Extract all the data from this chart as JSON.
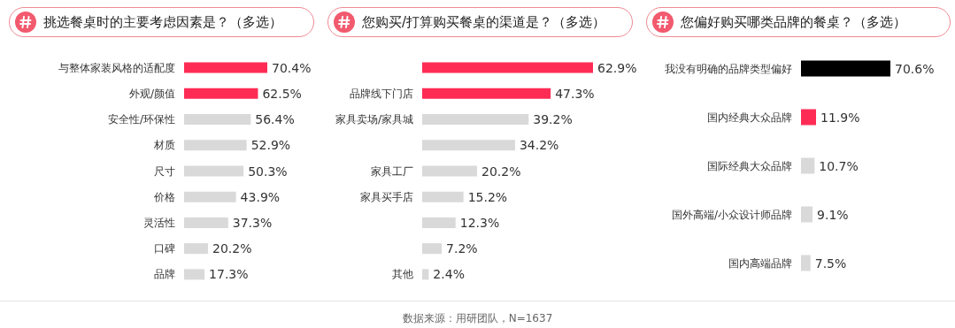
{
  "chart_data": [
    {
      "type": "bar",
      "orientation": "horizontal",
      "title": "挑选餐桌时的主要考虑因素是？（多选）",
      "categories": [
        "与整体家装风格的适配度",
        "外观/颜值",
        "安全性/环保性",
        "材质",
        "尺寸",
        "价格",
        "灵活性",
        "口碑",
        "品牌"
      ],
      "values": [
        70.4,
        62.5,
        56.4,
        52.9,
        50.3,
        43.9,
        37.3,
        20.2,
        17.3
      ],
      "value_labels": [
        "70.4%",
        "62.5%",
        "56.4%",
        "52.9%",
        "50.3%",
        "43.9%",
        "37.3%",
        "20.2%",
        "17.3%"
      ],
      "colors": [
        "#fe2c55",
        "#fe2c55",
        "#d9d9d9",
        "#d9d9d9",
        "#d9d9d9",
        "#d9d9d9",
        "#d9d9d9",
        "#d9d9d9",
        "#d9d9d9"
      ],
      "annotations": [
        "数据来源：用研团队，N=1637"
      ]
    },
    {
      "type": "bar",
      "orientation": "horizontal",
      "title": "您购买/打算购买餐桌的渠道是？（多选）",
      "categories": [
        null,
        "品牌线下门店",
        "家具卖场/家具城",
        null,
        "家具工厂",
        "家具买手店",
        null,
        null,
        "其他"
      ],
      "values": [
        62.9,
        47.3,
        39.2,
        34.2,
        20.2,
        15.2,
        12.3,
        7.2,
        2.4
      ],
      "value_labels": [
        "62.9%",
        "47.3%",
        "39.2%",
        "34.2%",
        "20.2%",
        "15.2%",
        "12.3%",
        "7.2%",
        "2.4%"
      ],
      "colors": [
        "#fe2c55",
        "#fe2c55",
        "#d9d9d9",
        "#d9d9d9",
        "#d9d9d9",
        "#d9d9d9",
        "#d9d9d9",
        "#d9d9d9",
        "#d9d9d9"
      ]
    },
    {
      "type": "bar",
      "orientation": "horizontal",
      "title": "您偏好购买哪类品牌的餐桌？（多选）",
      "categories": [
        "我没有明确的品牌类型偏好",
        "国内经典大众品牌",
        "国际经典大众品牌",
        "国外高端/小众设计师品牌",
        "国内高端品牌"
      ],
      "values": [
        70.6,
        11.9,
        10.7,
        9.1,
        7.5
      ],
      "value_labels": [
        "70.6%",
        "11.9%",
        "10.7%",
        "9.1%",
        "7.5%"
      ],
      "colors": [
        "#000000",
        "#fe2c55",
        "#d9d9d9",
        "#d9d9d9",
        "#d9d9d9"
      ]
    }
  ]
}
